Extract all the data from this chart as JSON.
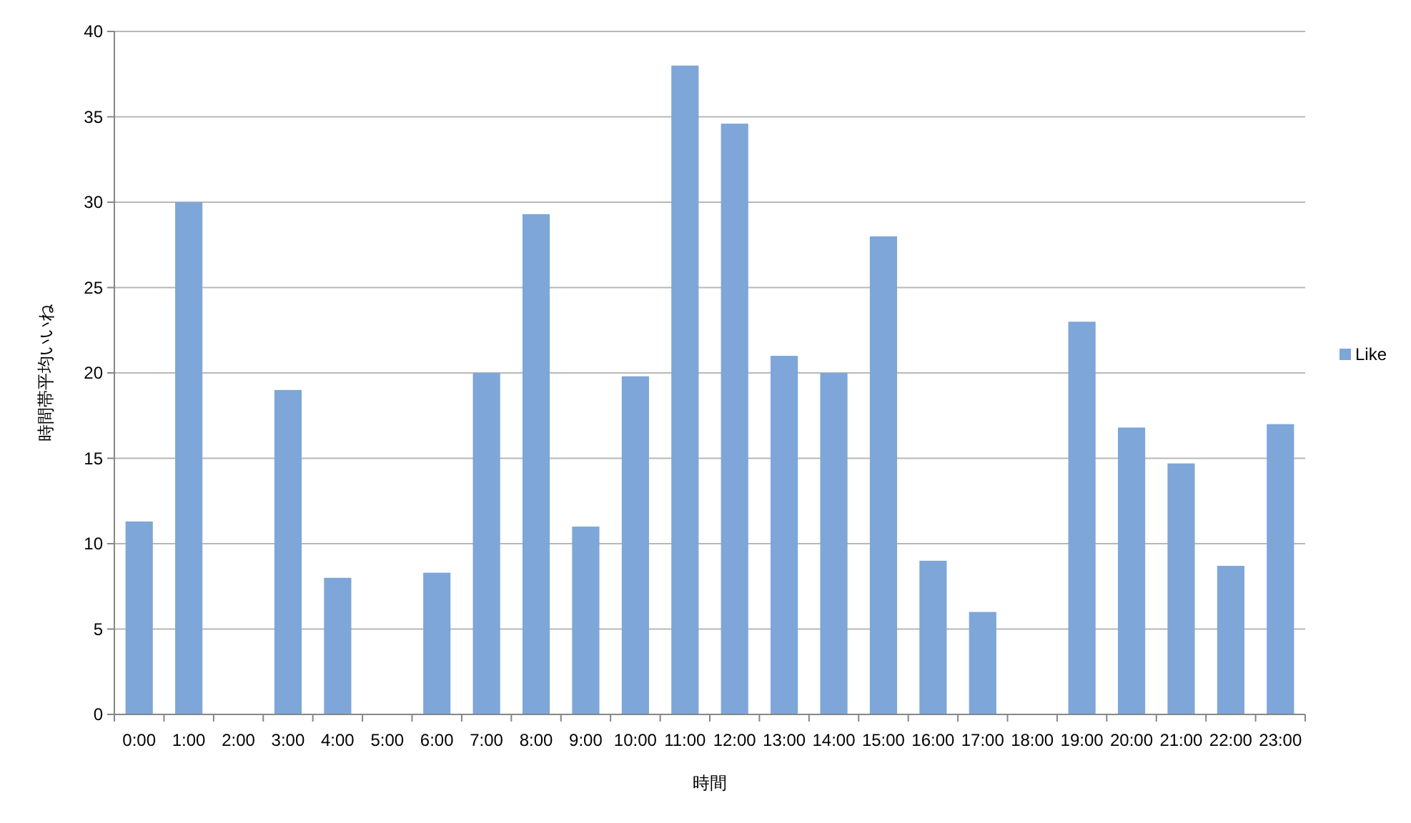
{
  "chart_data": {
    "type": "bar",
    "xlabel": "時間",
    "ylabel": "時間帯平均いいね",
    "categories": [
      "0:00",
      "1:00",
      "2:00",
      "3:00",
      "4:00",
      "5:00",
      "6:00",
      "7:00",
      "8:00",
      "9:00",
      "10:00",
      "11:00",
      "12:00",
      "13:00",
      "14:00",
      "15:00",
      "16:00",
      "17:00",
      "18:00",
      "19:00",
      "20:00",
      "21:00",
      "22:00",
      "23:00"
    ],
    "series": [
      {
        "name": "Like",
        "color": "#7ea6d8",
        "values": [
          11.3,
          30,
          null,
          19,
          8,
          null,
          8.3,
          20,
          29.3,
          11,
          19.8,
          38,
          34.6,
          21,
          20,
          28,
          9,
          6,
          null,
          23,
          16.8,
          14.7,
          8.7,
          17
        ]
      }
    ],
    "ylim": [
      0,
      40
    ],
    "yticks": [
      0,
      5,
      10,
      15,
      20,
      25,
      30,
      35,
      40
    ],
    "grid": "y",
    "legend": "right"
  }
}
